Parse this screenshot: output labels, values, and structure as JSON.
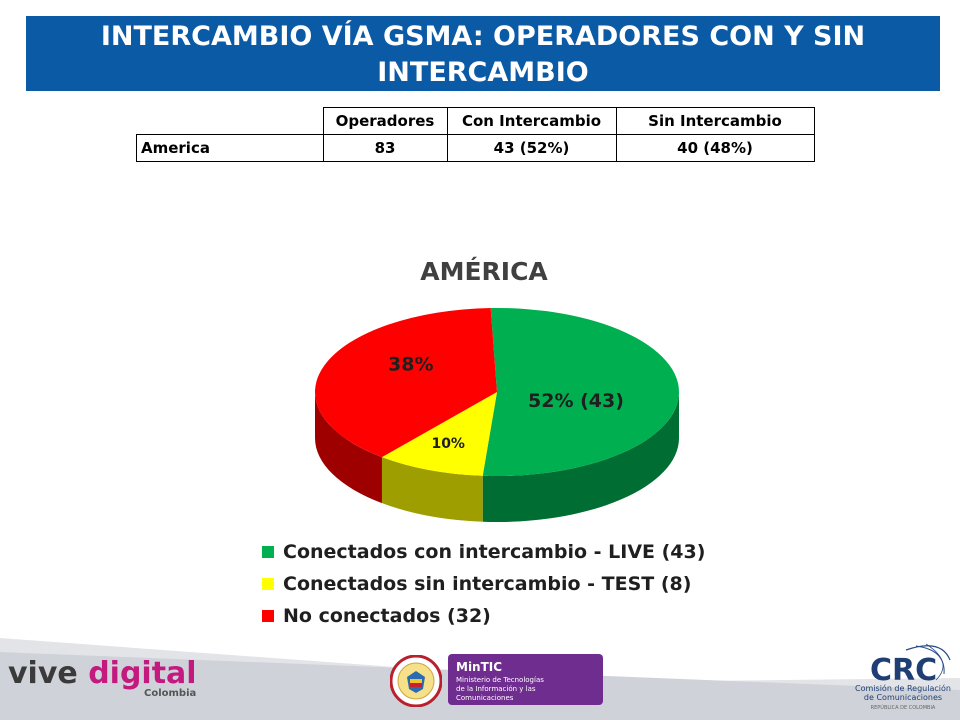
{
  "header": {
    "title": "INTERCAMBIO VÍA GSMA:  OPERADORES CON   Y SIN INTERCAMBIO"
  },
  "summary_table": {
    "columns": [
      "Operadores",
      "Con Intercambio",
      "Sin Intercambio"
    ],
    "row": {
      "label": "America",
      "operadores": "83",
      "con_intercambio": "43 (52%)",
      "sin_intercambio": "40 (48%)"
    }
  },
  "chart_data": {
    "type": "pie",
    "style": "3d",
    "title": "AMÉRICA",
    "slices": [
      {
        "name": "Conectados con intercambio - LIVE (43)",
        "value": 43,
        "percent": 52,
        "label": "52% (43)",
        "color": "#00b050"
      },
      {
        "name": "Conectados sin intercambio - TEST (8)",
        "value": 8,
        "percent": 10,
        "label": "10%",
        "color": "#ffff00"
      },
      {
        "name": "No conectados  (32)",
        "value": 32,
        "percent": 38,
        "label": "38%",
        "color": "#ff0000"
      }
    ],
    "legend_position": "bottom"
  },
  "footer": {
    "vive_word1": "vive",
    "vive_word2": "digital",
    "vive_country": "Colombia",
    "mintic_name": "MinTIC",
    "mintic_line1": "Ministerio de Tecnologías",
    "mintic_line2": "de la Información y las Comunicaciones",
    "crc_letters": "CRC",
    "crc_line1": "Comisión de Regulación",
    "crc_line2": "de Comunicaciones",
    "crc_country": "REPÚBLICA DE COLOMBIA"
  }
}
